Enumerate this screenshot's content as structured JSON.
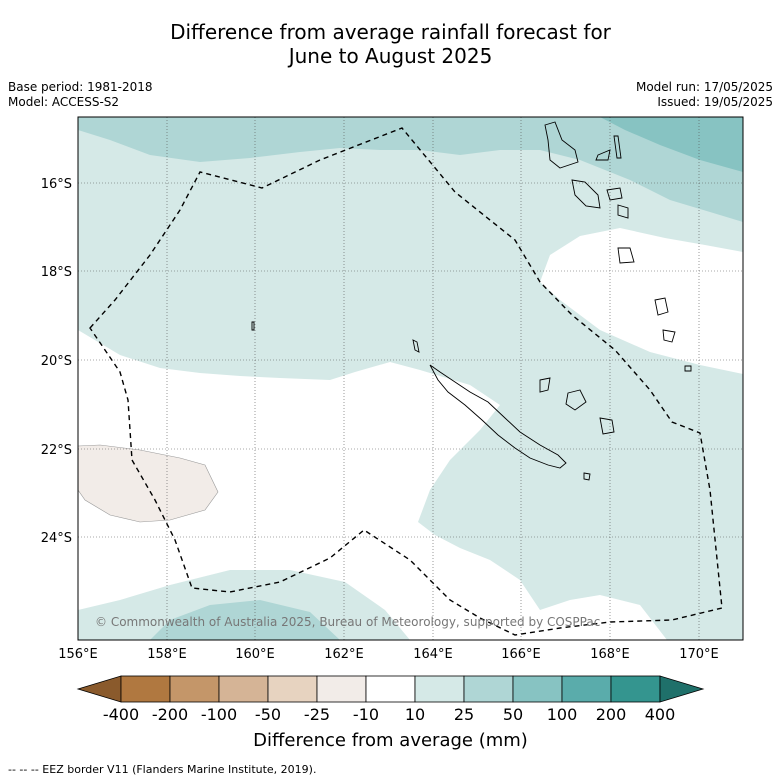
{
  "title": {
    "line1": "Difference from average rainfall forecast for",
    "line2": "June to August 2025"
  },
  "meta": {
    "base_period": "Base period: 1981-2018",
    "model": "Model: ACCESS-S2",
    "model_run": "Model run: 17/05/2025",
    "issued": "Issued: 19/05/2025"
  },
  "map": {
    "lat_ticks": [
      "16°S",
      "18°S",
      "20°S",
      "22°S",
      "24°S"
    ],
    "lon_ticks": [
      "156°E",
      "158°E",
      "160°E",
      "162°E",
      "164°E",
      "166°E",
      "168°E",
      "170°E"
    ],
    "copyright": "© Commonwealth of Australia 2025, Bureau of Meteorology, supported by COSPPac",
    "colors": {
      "ocean_wet_light": "#d5e9e7",
      "ocean_wet_mid": "#afd6d5",
      "ocean_wet_strong": "#87c3c2",
      "dry_light": "#f2ece8",
      "neutral": "#ffffff",
      "coast": "#000000",
      "grid": "#555555"
    }
  },
  "colorbar": {
    "labels": [
      "-400",
      "-200",
      "-100",
      "-50",
      "-25",
      "-10",
      "10",
      "25",
      "50",
      "100",
      "200",
      "400"
    ],
    "colors": [
      "#8a5a2c",
      "#b07840",
      "#c49669",
      "#d5b496",
      "#e7d3c0",
      "#f2ece8",
      "#ffffff",
      "#d5e9e7",
      "#afd6d5",
      "#87c3c2",
      "#5aacab",
      "#34958f",
      "#1f706a"
    ],
    "title": "Difference from average (mm)"
  },
  "footnote": "-- -- -- EEZ border V11 (Flanders Marine Institute, 2019)."
}
